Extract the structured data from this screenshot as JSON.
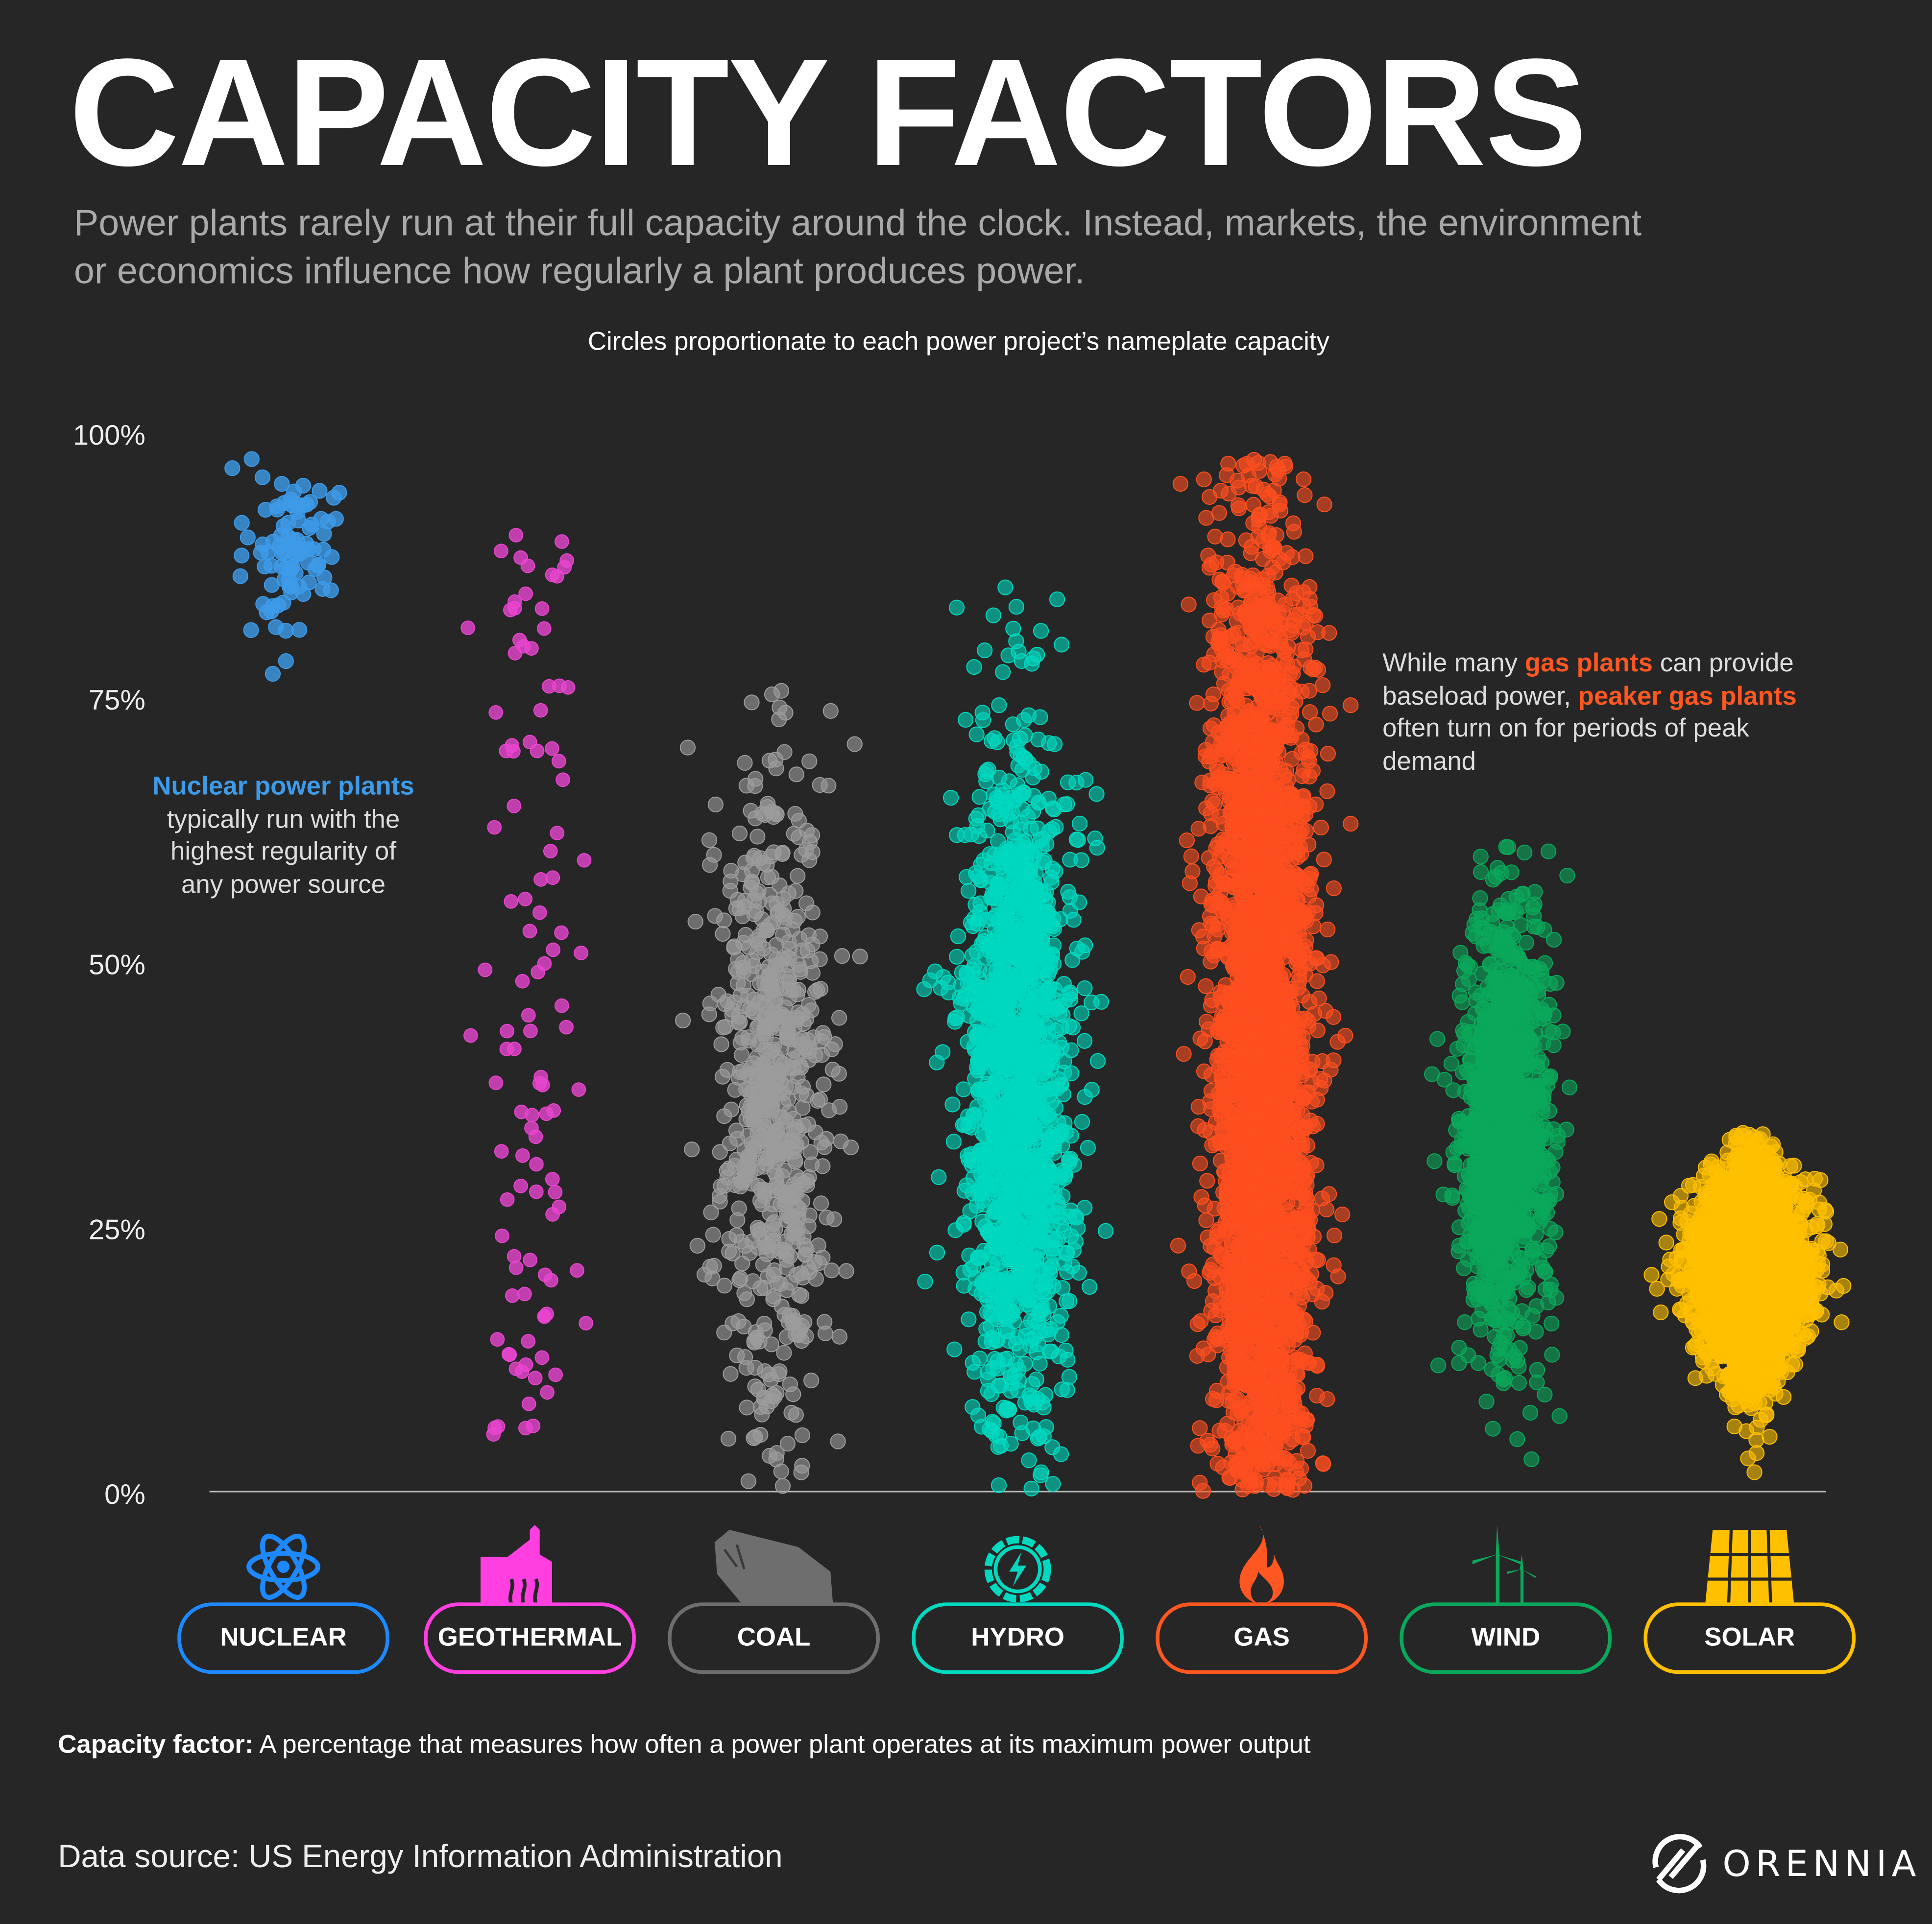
{
  "title": "CAPACITY FACTORS",
  "subtitle": "Power plants rarely run at their full capacity around the clock. Instead, markets, the environment or economics influence how regularly a plant produces power.",
  "note": "Circles proportionate to each power project’s nameplate capacity",
  "annotations": {
    "nuclear": {
      "highlight": "Nuclear power plants",
      "rest": " typically run with the highest regularity of any power source"
    },
    "gas": {
      "part1": "While many ",
      "hl1": "gas plants",
      "part2": " can provide baseload power, ",
      "hl2": "peaker gas plants",
      "part3": " often turn on for periods of peak demand"
    }
  },
  "definition": {
    "term": "Capacity factor:",
    "text": " A percentage that measures how often a power plant operates at its maximum power output"
  },
  "source": "Data source: US Energy Information Administration",
  "logo": {
    "text": "ORENNIA"
  },
  "chart_data": {
    "type": "scatter",
    "title": "CAPACITY FACTORS",
    "ylabel": "",
    "ylim": [
      0,
      100
    ],
    "yticks": [
      "0%",
      "25%",
      "50%",
      "75%",
      "100%"
    ],
    "grid": false,
    "categories": [
      "NUCLEAR",
      "GEOTHERMAL",
      "COAL",
      "HYDRO",
      "GAS",
      "WIND",
      "SOLAR"
    ],
    "series": [
      {
        "name": "NUCLEAR",
        "color": "#1e88ff",
        "point_color": "#3d9be9",
        "icon": "atom-icon",
        "approx_count": 90,
        "min": 75,
        "max": 98,
        "mean": 89,
        "sd": 5
      },
      {
        "name": "GEOTHERMAL",
        "color": "#ff3fe0",
        "point_color": "#e845d0",
        "icon": "geothermal-plant-icon",
        "approx_count": 110,
        "min": 5,
        "max": 91,
        "mean": 45,
        "sd": 22
      },
      {
        "name": "COAL",
        "color": "#6e6e6e",
        "point_color": "#9c9c9c",
        "icon": "coal-icon",
        "approx_count": 700,
        "min": 0,
        "max": 77,
        "mean": 36,
        "sd": 17
      },
      {
        "name": "HYDRO",
        "color": "#00d9c0",
        "point_color": "#00d9c0",
        "icon": "hydro-icon",
        "approx_count": 1500,
        "min": 0,
        "max": 89,
        "mean": 38,
        "sd": 17
      },
      {
        "name": "GAS",
        "color": "#ff5722",
        "point_color": "#fe4f1f",
        "icon": "flame-icon",
        "approx_count": 3000,
        "min": 0,
        "max": 98,
        "mean": 40,
        "sd": 28
      },
      {
        "name": "WIND",
        "color": "#0aa85a",
        "point_color": "#0aa85a",
        "icon": "wind-turbine-icon",
        "approx_count": 1200,
        "min": 3,
        "max": 61,
        "mean": 35,
        "sd": 10
      },
      {
        "name": "SOLAR",
        "color": "#ffc000",
        "point_color": "#ffc000",
        "icon": "solar-panel-icon",
        "approx_count": 3000,
        "min": 0,
        "max": 34,
        "mean": 21,
        "sd": 5
      }
    ]
  }
}
